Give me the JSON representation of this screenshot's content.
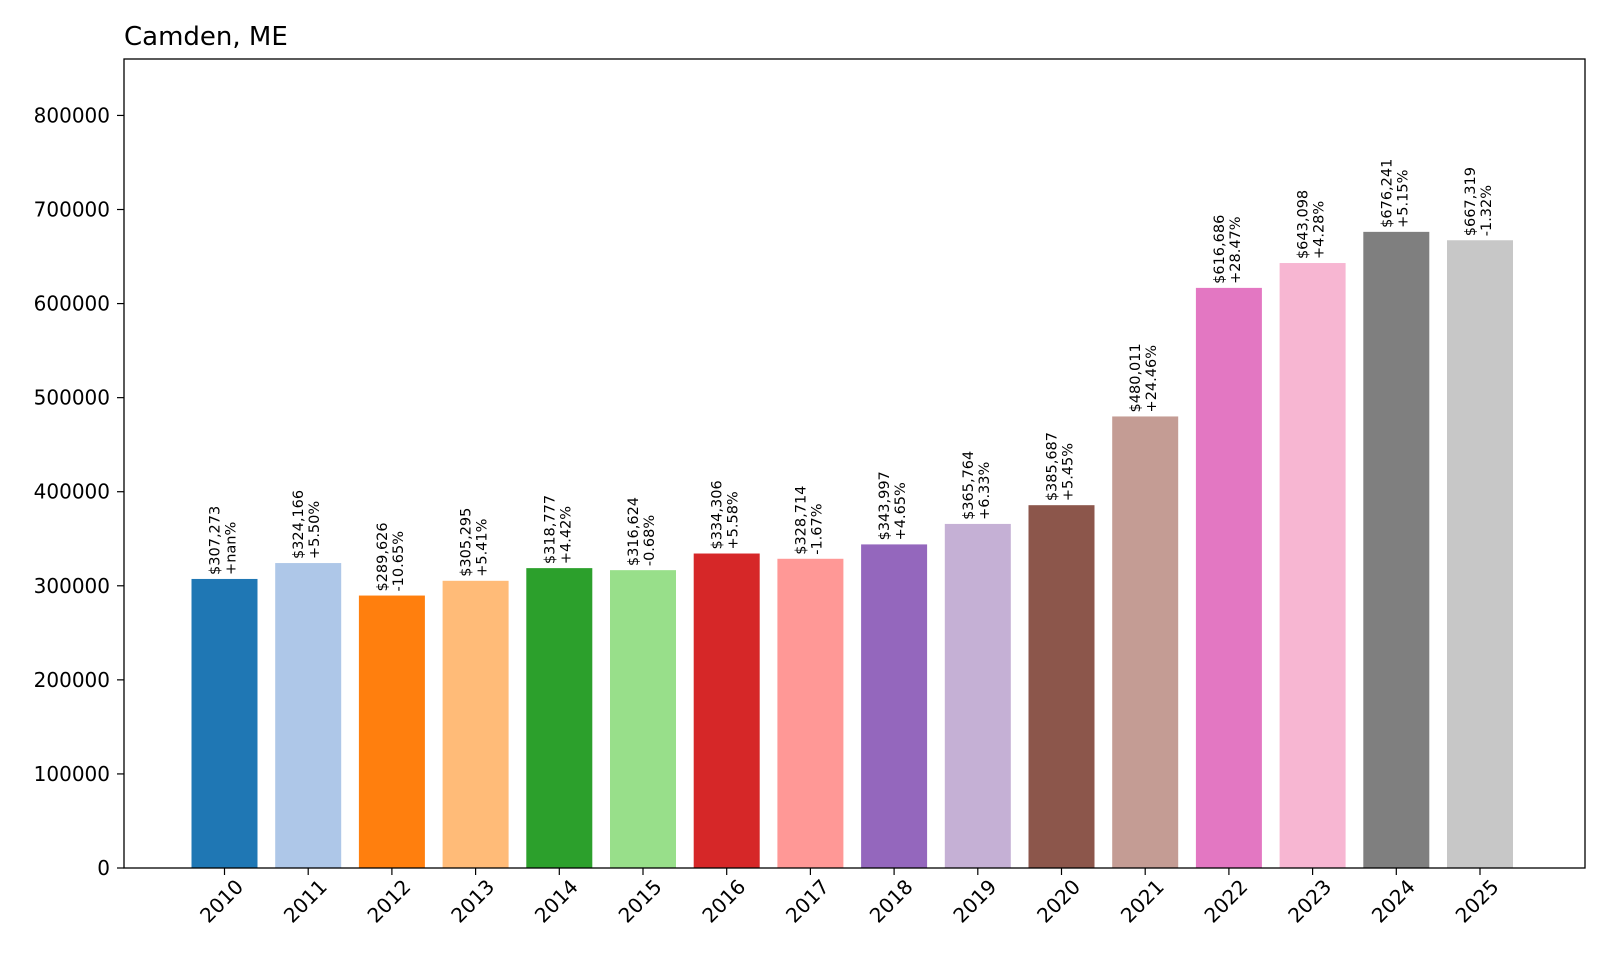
{
  "chart_data": {
    "type": "bar",
    "title": "Camden, ME",
    "xlabel": "",
    "ylabel": "",
    "ylim": [
      0,
      860000
    ],
    "yticks": [
      0,
      100000,
      200000,
      300000,
      400000,
      500000,
      600000,
      700000,
      800000
    ],
    "grid": false,
    "categories": [
      "2010",
      "2011",
      "2012",
      "2013",
      "2014",
      "2015",
      "2016",
      "2017",
      "2018",
      "2019",
      "2020",
      "2021",
      "2022",
      "2023",
      "2024",
      "2025"
    ],
    "values": [
      307273,
      324166,
      289626,
      305295,
      318777,
      316624,
      334306,
      328714,
      343997,
      365764,
      385687,
      480011,
      616686,
      643098,
      676241,
      667319
    ],
    "value_labels": [
      "$307,273",
      "$324,166",
      "$289,626",
      "$305,295",
      "$318,777",
      "$316,624",
      "$334,306",
      "$328,714",
      "$343,997",
      "$365,764",
      "$385,687",
      "$480,011",
      "$616,686",
      "$643,098",
      "$676,241",
      "$667,319"
    ],
    "change_labels": [
      "+nan%",
      "+5.50%",
      "-10.65%",
      "+5.41%",
      "+4.42%",
      "-0.68%",
      "+5.58%",
      "-1.67%",
      "+4.65%",
      "+6.33%",
      "+5.45%",
      "+24.46%",
      "+28.47%",
      "+4.28%",
      "+5.15%",
      "-1.32%"
    ],
    "colors": [
      "#1f77b4",
      "#aec7e8",
      "#ff7f0e",
      "#ffbb78",
      "#2ca02c",
      "#98df8a",
      "#d62728",
      "#ff9896",
      "#9467bd",
      "#c5b0d5",
      "#8c564b",
      "#c49c94",
      "#e377c2",
      "#f7b6d2",
      "#7f7f7f",
      "#c7c7c7"
    ]
  }
}
